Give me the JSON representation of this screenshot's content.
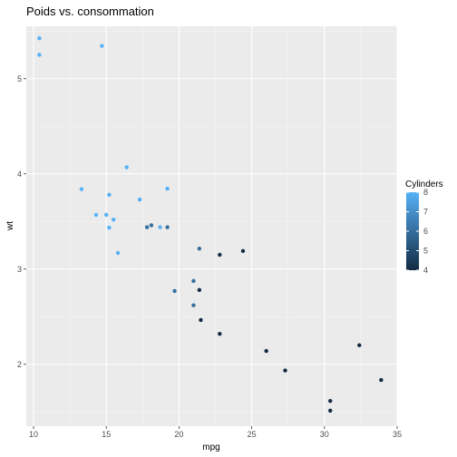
{
  "colors": {
    "panel_bg": "#ebebeb",
    "grid_major": "#ffffff",
    "grid_minor": "#f5f5f5",
    "tick_text": "#4d4d4d",
    "gradient_low": "#132B43",
    "gradient_high": "#56B1F7"
  },
  "chart_data": {
    "type": "scatter",
    "title": "Poids vs. consommation",
    "xlabel": "mpg",
    "ylabel": "wt",
    "xlim": [
      9.5,
      35
    ],
    "ylim": [
      1.35,
      5.55
    ],
    "xticks": [
      10,
      15,
      20,
      25,
      30,
      35
    ],
    "yticks": [
      2,
      3,
      4,
      5
    ],
    "grid": true,
    "legend": {
      "title": "Cylinders",
      "placement": "right",
      "min": 4,
      "max": 8,
      "breaks": [
        4,
        5,
        6,
        7,
        8
      ]
    },
    "points": [
      {
        "x": 21.0,
        "y": 2.62,
        "c": 6
      },
      {
        "x": 21.0,
        "y": 2.875,
        "c": 6
      },
      {
        "x": 22.8,
        "y": 2.32,
        "c": 4
      },
      {
        "x": 21.4,
        "y": 3.215,
        "c": 6
      },
      {
        "x": 18.7,
        "y": 3.44,
        "c": 8
      },
      {
        "x": 18.1,
        "y": 3.46,
        "c": 6
      },
      {
        "x": 14.3,
        "y": 3.57,
        "c": 8
      },
      {
        "x": 24.4,
        "y": 3.19,
        "c": 4
      },
      {
        "x": 22.8,
        "y": 3.15,
        "c": 4
      },
      {
        "x": 19.2,
        "y": 3.44,
        "c": 6
      },
      {
        "x": 17.8,
        "y": 3.44,
        "c": 6
      },
      {
        "x": 16.4,
        "y": 4.07,
        "c": 8
      },
      {
        "x": 17.3,
        "y": 3.73,
        "c": 8
      },
      {
        "x": 15.2,
        "y": 3.78,
        "c": 8
      },
      {
        "x": 10.4,
        "y": 5.25,
        "c": 8
      },
      {
        "x": 10.4,
        "y": 5.424,
        "c": 8
      },
      {
        "x": 14.7,
        "y": 5.345,
        "c": 8
      },
      {
        "x": 32.4,
        "y": 2.2,
        "c": 4
      },
      {
        "x": 30.4,
        "y": 1.615,
        "c": 4
      },
      {
        "x": 33.9,
        "y": 1.835,
        "c": 4
      },
      {
        "x": 21.5,
        "y": 2.465,
        "c": 4
      },
      {
        "x": 15.5,
        "y": 3.52,
        "c": 8
      },
      {
        "x": 15.2,
        "y": 3.435,
        "c": 8
      },
      {
        "x": 13.3,
        "y": 3.84,
        "c": 8
      },
      {
        "x": 19.2,
        "y": 3.845,
        "c": 8
      },
      {
        "x": 27.3,
        "y": 1.935,
        "c": 4
      },
      {
        "x": 26.0,
        "y": 2.14,
        "c": 4
      },
      {
        "x": 30.4,
        "y": 1.513,
        "c": 4
      },
      {
        "x": 15.8,
        "y": 3.17,
        "c": 8
      },
      {
        "x": 19.7,
        "y": 2.77,
        "c": 6
      },
      {
        "x": 15.0,
        "y": 3.57,
        "c": 8
      },
      {
        "x": 21.4,
        "y": 2.78,
        "c": 4
      }
    ]
  }
}
